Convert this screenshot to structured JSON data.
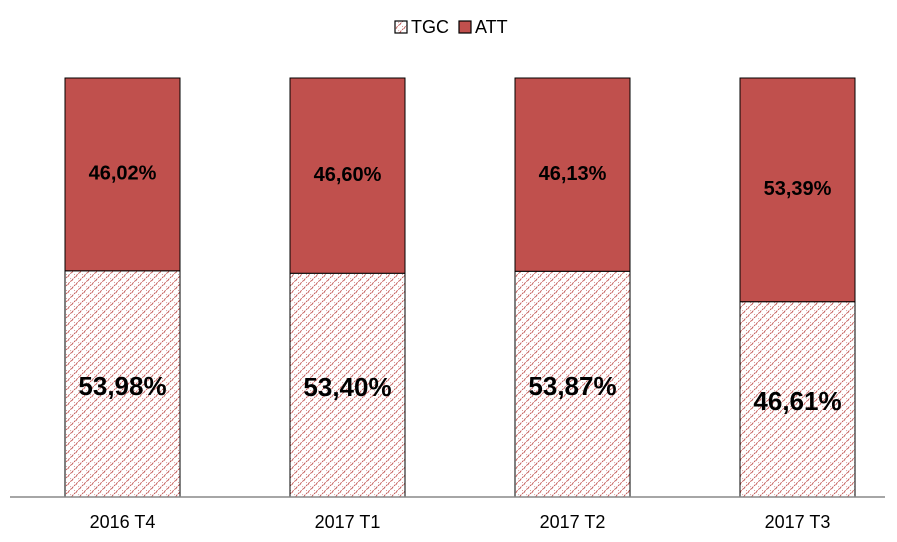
{
  "chart_data": {
    "type": "stacked_bar",
    "categories": [
      "2016 T4",
      "2017 T1",
      "2017 T2",
      "2017 T3"
    ],
    "series": [
      {
        "name": "TGC",
        "color": "#c0504d",
        "hatch": true,
        "values": [
          53.98,
          53.4,
          53.87,
          46.61
        ],
        "value_labels": [
          "53,98%",
          "53,40%",
          "53,87%",
          "46,61%"
        ]
      },
      {
        "name": "ATT",
        "color": "#c0504d",
        "hatch": false,
        "values": [
          46.02,
          46.6,
          46.13,
          53.39
        ],
        "value_labels": [
          "46,02%",
          "46,60%",
          "46,13%",
          "53,39%"
        ]
      }
    ],
    "ylim": [
      0,
      100
    ],
    "legend": "top"
  }
}
